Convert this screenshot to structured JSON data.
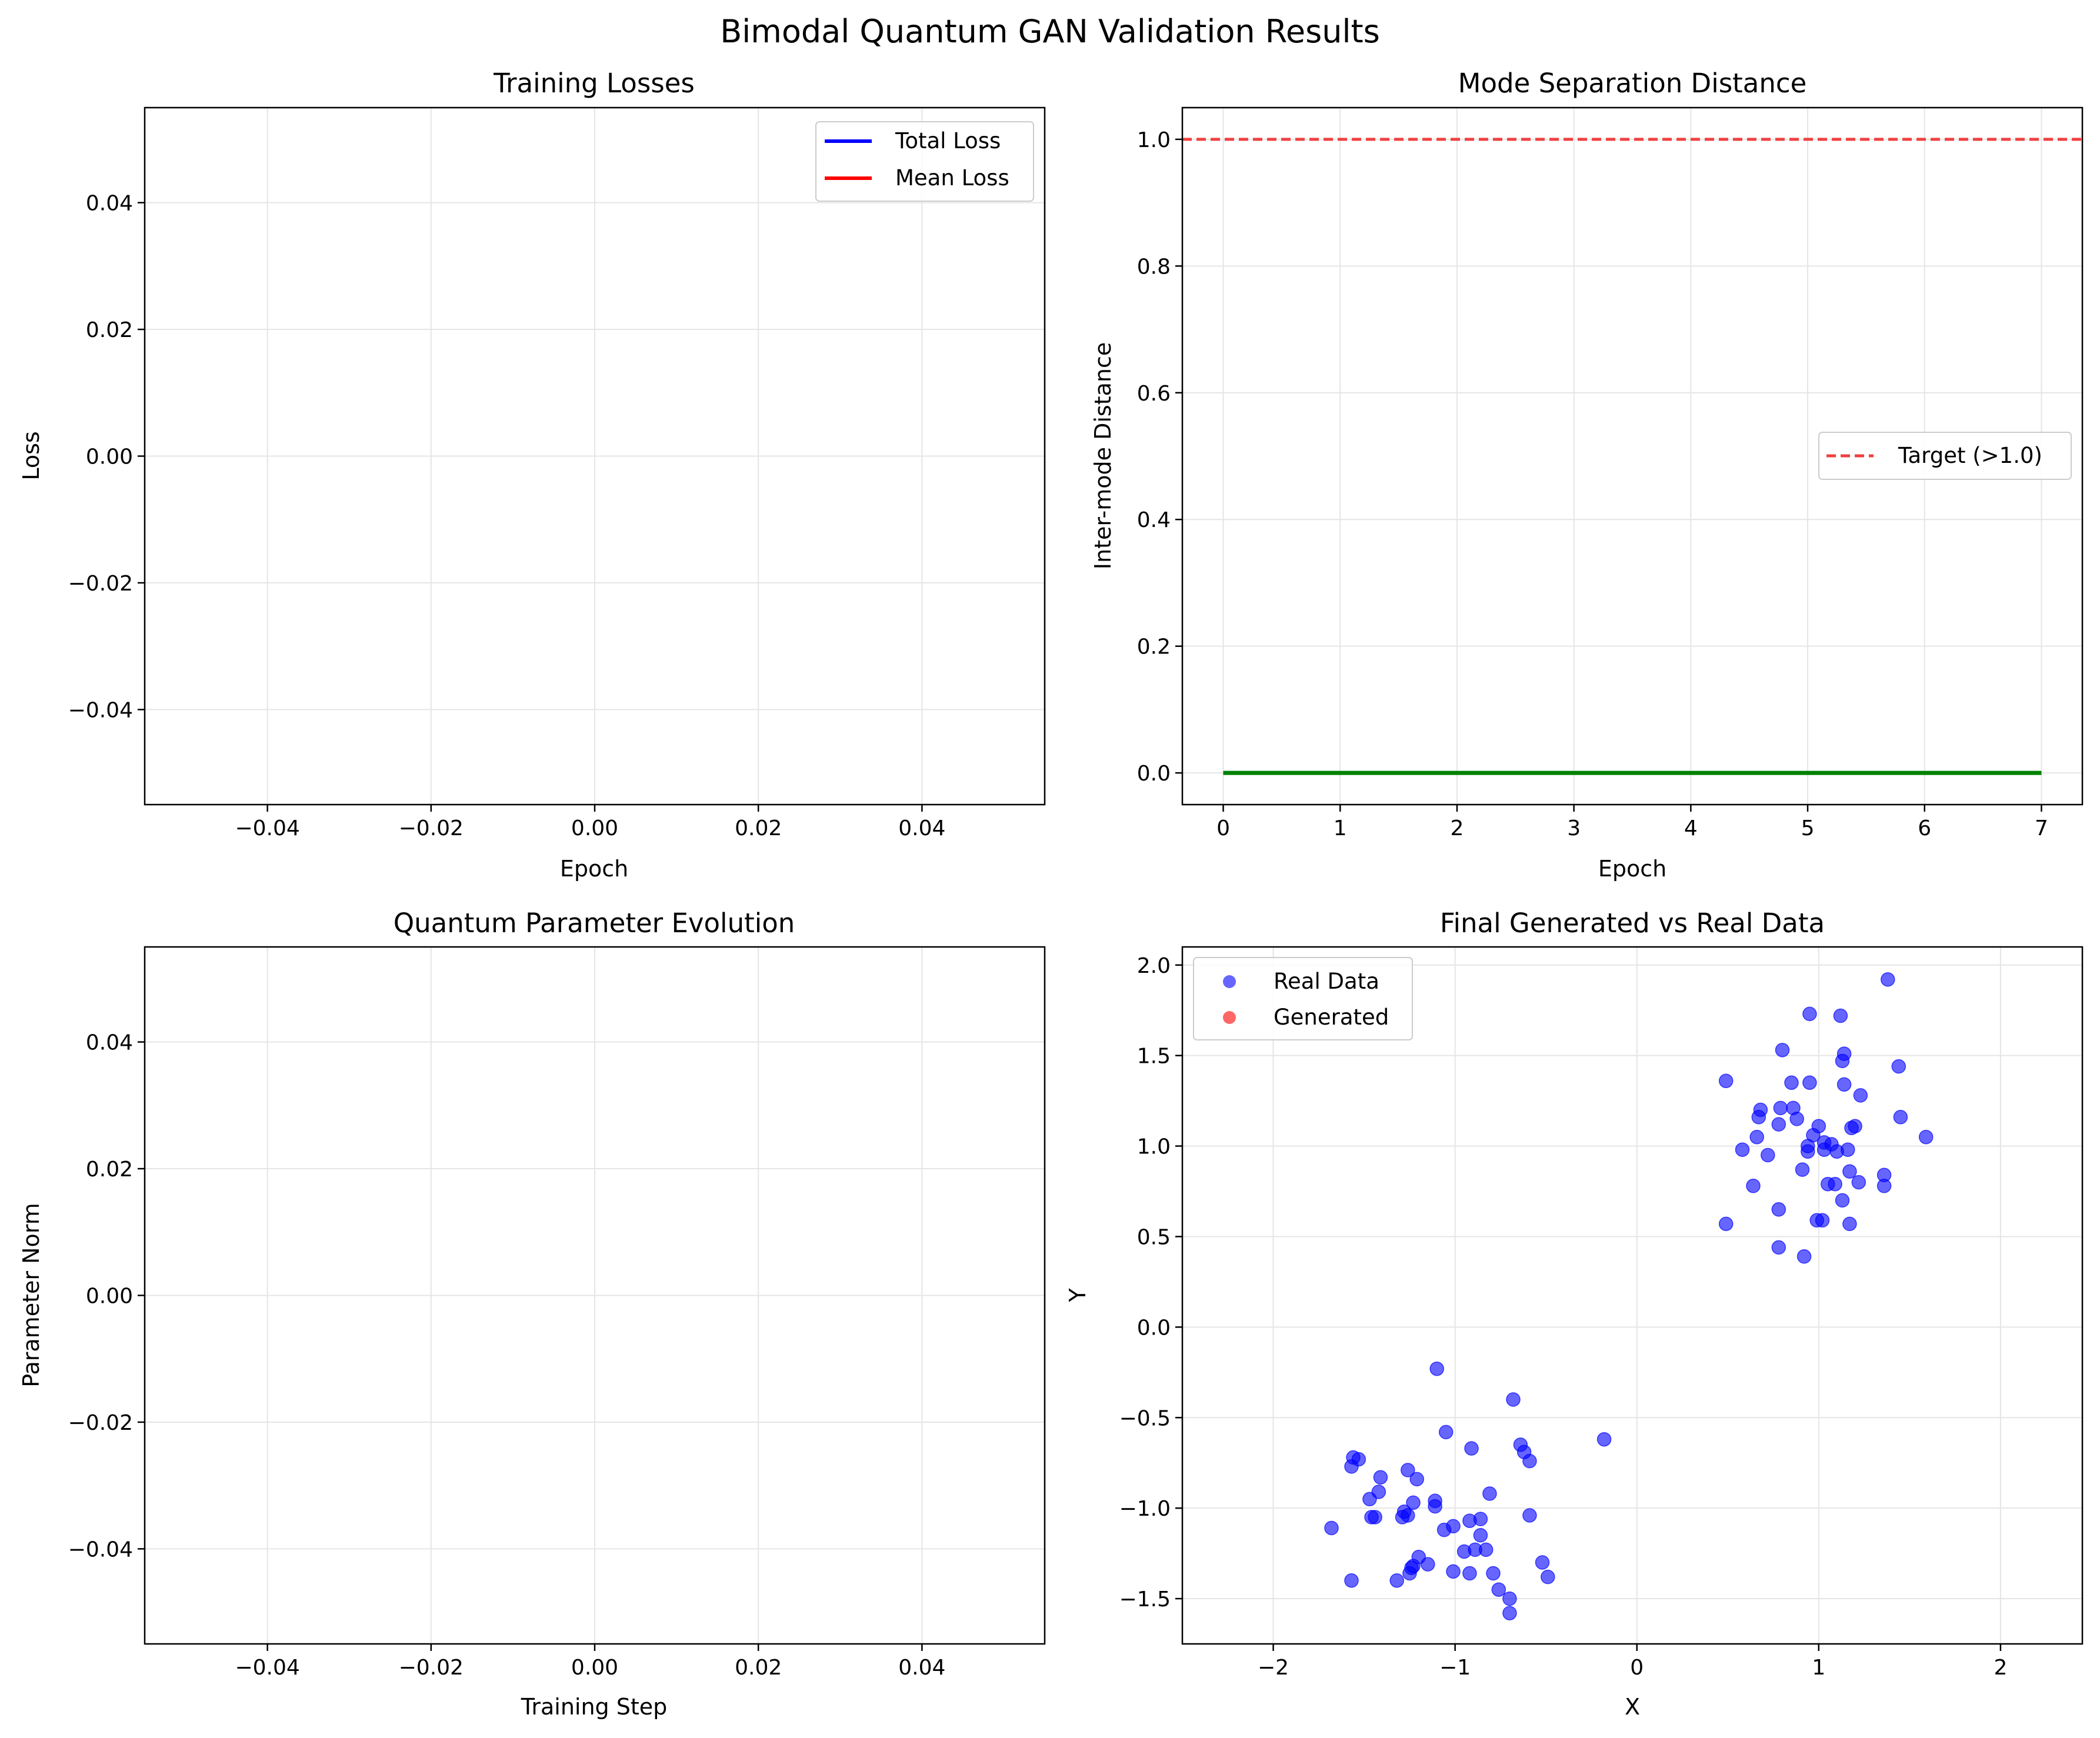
{
  "suptitle": "Bimodal Quantum GAN Validation Results",
  "colors": {
    "total_loss": "#0000ff",
    "mean_loss": "#ff0000",
    "separation": "#008000",
    "target": "#f04040",
    "real": "#0000ff",
    "generated": "#ff0000"
  },
  "chart_data": [
    {
      "id": "loss",
      "type": "line",
      "title": "Training Losses",
      "xlabel": "Epoch",
      "ylabel": "Loss",
      "xlim": [
        -0.055,
        0.055
      ],
      "ylim": [
        -0.055,
        0.055
      ],
      "xticks": [
        -0.04,
        -0.02,
        0.0,
        0.02,
        0.04
      ],
      "xtick_labels": [
        "−0.04",
        "−0.02",
        "0.00",
        "0.02",
        "0.04"
      ],
      "yticks": [
        -0.04,
        -0.02,
        0.0,
        0.02,
        0.04
      ],
      "ytick_labels": [
        "−0.04",
        "−0.02",
        "0.00",
        "0.02",
        "0.04"
      ],
      "grid": true,
      "legend_position": "top-right",
      "series": [
        {
          "name": "Total Loss",
          "color": "#0000ff",
          "x": [],
          "y": []
        },
        {
          "name": "Mean Loss",
          "color": "#ff0000",
          "x": [],
          "y": []
        }
      ]
    },
    {
      "id": "sep",
      "type": "line",
      "title": "Mode Separation Distance",
      "xlabel": "Epoch",
      "ylabel": "Inter-mode Distance",
      "xlim": [
        -0.35,
        7.35
      ],
      "ylim": [
        -0.05,
        1.05
      ],
      "xticks": [
        0,
        1,
        2,
        3,
        4,
        5,
        6,
        7
      ],
      "xtick_labels": [
        "0",
        "1",
        "2",
        "3",
        "4",
        "5",
        "6",
        "7"
      ],
      "yticks": [
        0.0,
        0.2,
        0.4,
        0.6,
        0.8,
        1.0
      ],
      "ytick_labels": [
        "0.0",
        "0.2",
        "0.4",
        "0.6",
        "0.8",
        "1.0"
      ],
      "grid": true,
      "legend_position": "center-right",
      "series": [
        {
          "name": "",
          "color": "#008000",
          "x": [
            0,
            1,
            2,
            3,
            4,
            5,
            6,
            7
          ],
          "y": [
            0,
            0,
            0,
            0,
            0,
            0,
            0,
            0
          ]
        }
      ],
      "hline": {
        "y": 1.0,
        "name": "Target (>1.0)",
        "color": "#f04040",
        "style": "dashed"
      }
    },
    {
      "id": "param",
      "type": "line",
      "title": "Quantum Parameter Evolution",
      "xlabel": "Training Step",
      "ylabel": "Parameter Norm",
      "xlim": [
        -0.055,
        0.055
      ],
      "ylim": [
        -0.055,
        0.055
      ],
      "xticks": [
        -0.04,
        -0.02,
        0.0,
        0.02,
        0.04
      ],
      "xtick_labels": [
        "−0.04",
        "−0.02",
        "0.00",
        "0.02",
        "0.04"
      ],
      "yticks": [
        -0.04,
        -0.02,
        0.0,
        0.02,
        0.04
      ],
      "ytick_labels": [
        "−0.04",
        "−0.02",
        "0.00",
        "0.02",
        "0.04"
      ],
      "grid": true,
      "series": []
    },
    {
      "id": "scatter",
      "type": "scatter",
      "title": "Final Generated vs Real Data",
      "xlabel": "X",
      "ylabel": "Y",
      "xlim": [
        -2.5,
        2.45
      ],
      "ylim": [
        -1.75,
        2.1
      ],
      "xticks": [
        -2,
        -1,
        0,
        1,
        2
      ],
      "xtick_labels": [
        "−2",
        "−1",
        "0",
        "1",
        "2"
      ],
      "yticks": [
        -1.5,
        -1.0,
        -0.5,
        0.0,
        0.5,
        1.0,
        1.5,
        2.0
      ],
      "ytick_labels": [
        "−1.5",
        "−1.0",
        "−0.5",
        "0.0",
        "0.5",
        "1.0",
        "1.5",
        "2.0"
      ],
      "grid": true,
      "legend_position": "top-left",
      "series": [
        {
          "name": "Real Data",
          "color": "#0000ff",
          "points": [
            [
              1.38,
              1.92
            ],
            [
              0.95,
              1.73
            ],
            [
              1.12,
              1.72
            ],
            [
              1.14,
              1.51
            ],
            [
              1.13,
              1.47
            ],
            [
              0.8,
              1.53
            ],
            [
              1.44,
              1.44
            ],
            [
              0.49,
              1.36
            ],
            [
              0.85,
              1.35
            ],
            [
              0.95,
              1.35
            ],
            [
              1.14,
              1.34
            ],
            [
              1.23,
              1.28
            ],
            [
              0.68,
              1.2
            ],
            [
              0.79,
              1.21
            ],
            [
              0.86,
              1.21
            ],
            [
              0.67,
              1.16
            ],
            [
              0.88,
              1.15
            ],
            [
              0.78,
              1.12
            ],
            [
              1.45,
              1.16
            ],
            [
              1.0,
              1.11
            ],
            [
              1.18,
              1.1
            ],
            [
              1.2,
              1.11
            ],
            [
              0.66,
              1.05
            ],
            [
              0.97,
              1.06
            ],
            [
              1.59,
              1.05
            ],
            [
              1.03,
              1.02
            ],
            [
              0.94,
              1.0
            ],
            [
              1.07,
              1.01
            ],
            [
              0.58,
              0.98
            ],
            [
              1.03,
              0.98
            ],
            [
              1.1,
              0.97
            ],
            [
              1.16,
              0.98
            ],
            [
              0.94,
              0.97
            ],
            [
              0.72,
              0.95
            ],
            [
              0.91,
              0.87
            ],
            [
              1.17,
              0.86
            ],
            [
              1.36,
              0.84
            ],
            [
              1.05,
              0.79
            ],
            [
              1.09,
              0.79
            ],
            [
              1.22,
              0.8
            ],
            [
              0.64,
              0.78
            ],
            [
              1.36,
              0.78
            ],
            [
              1.13,
              0.7
            ],
            [
              0.78,
              0.65
            ],
            [
              0.99,
              0.59
            ],
            [
              1.02,
              0.59
            ],
            [
              0.49,
              0.57
            ],
            [
              1.17,
              0.57
            ],
            [
              0.78,
              0.44
            ],
            [
              0.92,
              0.39
            ],
            [
              -1.1,
              -0.23
            ],
            [
              -0.68,
              -0.4
            ],
            [
              -1.05,
              -0.58
            ],
            [
              -0.18,
              -0.62
            ],
            [
              -0.64,
              -0.65
            ],
            [
              -0.91,
              -0.67
            ],
            [
              -0.62,
              -0.69
            ],
            [
              -1.56,
              -0.72
            ],
            [
              -1.53,
              -0.73
            ],
            [
              -0.59,
              -0.74
            ],
            [
              -1.57,
              -0.77
            ],
            [
              -1.26,
              -0.79
            ],
            [
              -1.41,
              -0.83
            ],
            [
              -1.21,
              -0.84
            ],
            [
              -1.42,
              -0.91
            ],
            [
              -0.81,
              -0.92
            ],
            [
              -1.47,
              -0.95
            ],
            [
              -1.11,
              -0.96
            ],
            [
              -1.23,
              -0.97
            ],
            [
              -1.11,
              -0.99
            ],
            [
              -1.28,
              -1.02
            ],
            [
              -0.59,
              -1.04
            ],
            [
              -1.26,
              -1.04
            ],
            [
              -1.29,
              -1.05
            ],
            [
              -1.46,
              -1.05
            ],
            [
              -1.44,
              -1.05
            ],
            [
              -0.86,
              -1.06
            ],
            [
              -0.92,
              -1.07
            ],
            [
              -1.01,
              -1.1
            ],
            [
              -1.68,
              -1.11
            ],
            [
              -1.06,
              -1.12
            ],
            [
              -0.86,
              -1.15
            ],
            [
              -0.89,
              -1.23
            ],
            [
              -0.83,
              -1.23
            ],
            [
              -0.95,
              -1.24
            ],
            [
              -1.2,
              -1.27
            ],
            [
              -0.52,
              -1.3
            ],
            [
              -1.15,
              -1.31
            ],
            [
              -1.23,
              -1.32
            ],
            [
              -1.24,
              -1.33
            ],
            [
              -1.01,
              -1.35
            ],
            [
              -0.92,
              -1.36
            ],
            [
              -0.79,
              -1.36
            ],
            [
              -1.25,
              -1.36
            ],
            [
              -0.49,
              -1.38
            ],
            [
              -1.57,
              -1.4
            ],
            [
              -1.32,
              -1.4
            ],
            [
              -0.76,
              -1.45
            ],
            [
              -0.7,
              -1.5
            ],
            [
              -0.7,
              -1.58
            ]
          ]
        },
        {
          "name": "Generated",
          "color": "#ff0000",
          "points": []
        }
      ]
    }
  ]
}
